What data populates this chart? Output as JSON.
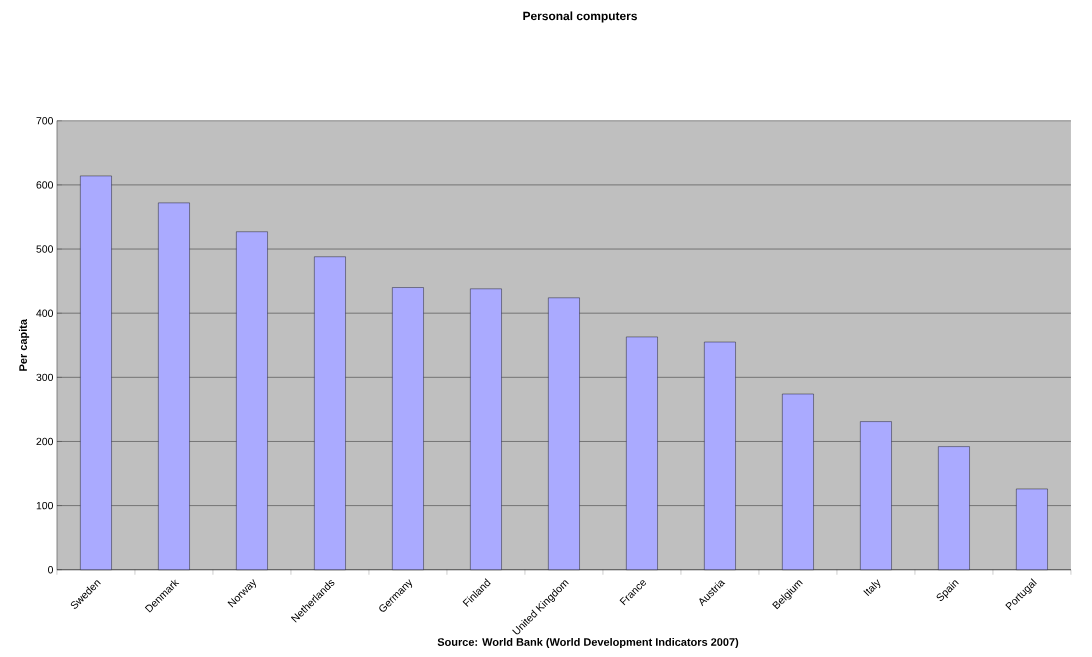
{
  "chart_data": {
    "type": "bar",
    "title": "Personal computers",
    "ylabel": "Per capita",
    "categories": [
      "Sweden",
      "Denmark",
      "Norway",
      "Netherlands",
      "Germany",
      "Finland",
      "United Kingdom",
      "France",
      "Austria",
      "Belgium",
      "Italy",
      "Spain",
      "Portugal"
    ],
    "values": [
      614,
      572,
      527,
      488,
      440,
      438,
      424,
      363,
      355,
      274,
      231,
      192,
      126
    ],
    "color": "#aaaaff",
    "ylim": [
      0,
      700
    ],
    "yticks": [
      0,
      100,
      200,
      300,
      400,
      500,
      600,
      700
    ],
    "grid": "y",
    "annotations": [
      "Source: World Bank (World Development Indicators 2007)"
    ]
  }
}
